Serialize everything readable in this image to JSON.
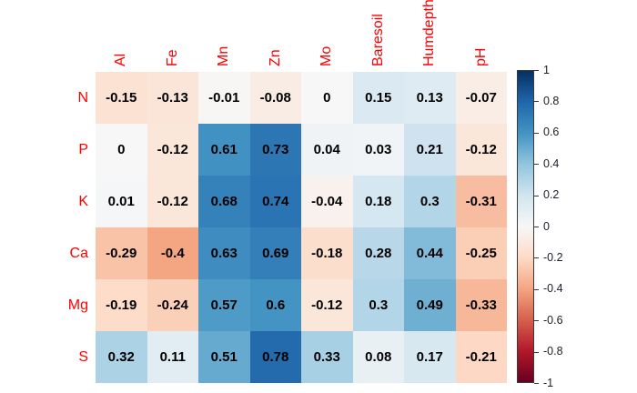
{
  "chart_data": {
    "type": "heatmap",
    "title": "",
    "rows": [
      "N",
      "P",
      "K",
      "Ca",
      "Mg",
      "S"
    ],
    "columns": [
      "Al",
      "Fe",
      "Mn",
      "Zn",
      "Mo",
      "Baresoil",
      "Humdepth",
      "pH"
    ],
    "values": [
      [
        -0.15,
        -0.13,
        -0.01,
        -0.08,
        0,
        0.15,
        0.13,
        -0.07
      ],
      [
        0,
        -0.12,
        0.61,
        0.73,
        0.04,
        0.03,
        0.21,
        -0.12
      ],
      [
        0.01,
        -0.12,
        0.68,
        0.74,
        -0.04,
        0.18,
        0.3,
        -0.31
      ],
      [
        -0.29,
        -0.4,
        0.63,
        0.69,
        -0.18,
        0.28,
        0.44,
        -0.25
      ],
      [
        -0.19,
        -0.24,
        0.57,
        0.6,
        -0.12,
        0.3,
        0.49,
        -0.33
      ],
      [
        0.32,
        0.11,
        0.51,
        0.78,
        0.33,
        0.08,
        0.17,
        -0.21
      ]
    ],
    "value_text_color": "#000000",
    "axis_label_color": "#FF0000",
    "grid": false,
    "legend_position": "right",
    "colorbar": {
      "min": -1,
      "max": 1,
      "ticks": [
        1,
        0.8,
        0.6,
        0.4,
        0.2,
        0,
        -0.2,
        -0.4,
        -0.6,
        -0.8,
        -1
      ],
      "tick_label_color": "#1c1c28"
    },
    "palette": {
      "name": "RdBu-reversed (blue = +1, red = -1)",
      "stops_top_to_bottom": [
        "#053061",
        "#2166AC",
        "#4393C3",
        "#92C5DE",
        "#D1E5F0",
        "#F7F7F7",
        "#FDDBC7",
        "#F4A582",
        "#D6604D",
        "#B2182B",
        "#67001F"
      ]
    }
  }
}
